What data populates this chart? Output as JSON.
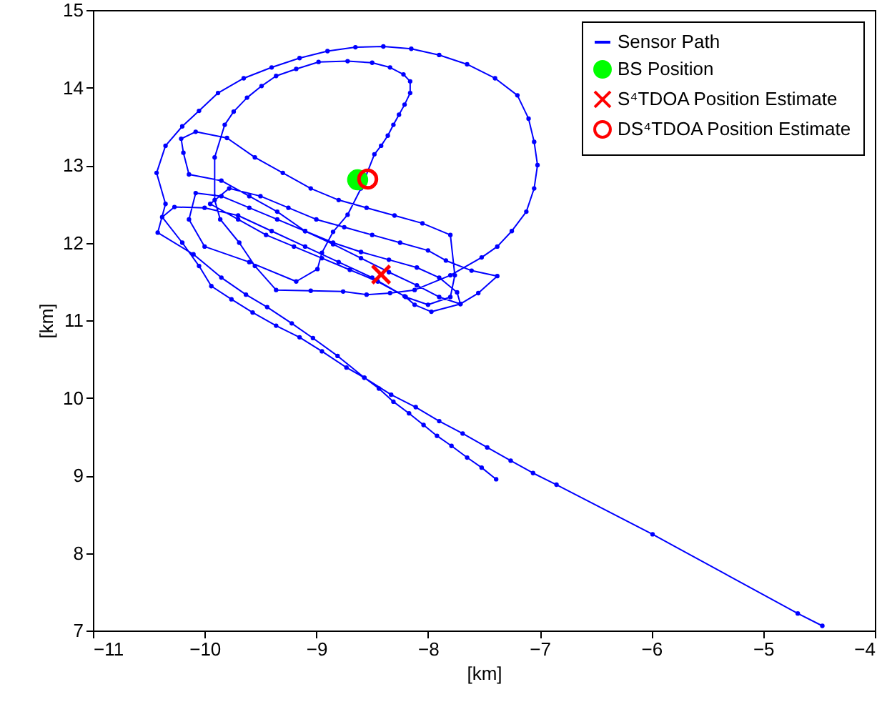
{
  "chart_data": {
    "type": "line",
    "xlabel": "[km]",
    "ylabel": "[km]",
    "xlim": [
      -11,
      -4
    ],
    "ylim": [
      7,
      15
    ],
    "xticks": [
      -11,
      -10,
      -9,
      -8,
      -7,
      -6,
      -5,
      -4
    ],
    "yticks": [
      7,
      8,
      9,
      10,
      11,
      12,
      13,
      14,
      15
    ],
    "legend": "top right",
    "series": [
      {
        "name": "Sensor Path",
        "type": "line",
        "marker": "circle",
        "color": "#0000ff",
        "x": [
          -4.47,
          -4.69,
          -5.99,
          -6.85,
          -7.06,
          -7.26,
          -7.47,
          -7.69,
          -7.9,
          -8.11,
          -8.33,
          -8.57,
          -8.81,
          -9.03,
          -9.22,
          -9.44,
          -9.63,
          -9.85,
          -10.1,
          -10.42,
          -10.35,
          -10.43,
          -10.35,
          -10.2,
          -10.05,
          -9.88,
          -9.65,
          -9.4,
          -9.15,
          -8.9,
          -8.65,
          -8.4,
          -8.15,
          -7.9,
          -7.65,
          -7.4,
          -7.2,
          -7.1,
          -7.05,
          -7.02,
          -7.05,
          -7.12,
          -7.25,
          -7.38,
          -7.52,
          -7.8,
          -8.12,
          -8.34,
          -8.55,
          -8.76,
          -9.05,
          -9.36,
          -9.55,
          -9.69,
          -9.86,
          -9.91,
          -9.91,
          -9.82,
          -9.74,
          -9.62,
          -9.49,
          -9.36,
          -9.18,
          -8.98,
          -8.72,
          -8.5,
          -8.34,
          -8.22,
          -8.16,
          -8.16,
          -8.21,
          -8.26,
          -8.31,
          -8.36,
          -8.42,
          -8.48,
          -8.6,
          -8.72,
          -8.85,
          -8.95,
          -8.99,
          -9.18,
          -9.6,
          -10.0,
          -10.14,
          -10.08,
          -9.85,
          -9.6,
          -9.35,
          -9.1,
          -8.85,
          -8.6,
          -8.35,
          -8.1,
          -7.9,
          -7.74,
          -7.71,
          -7.97,
          -8.12,
          -8.21,
          -8.45,
          -8.7,
          -8.95,
          -9.2,
          -9.45,
          -9.7,
          -9.95,
          -9.78,
          -9.5,
          -9.25,
          -9.0,
          -8.75,
          -8.5,
          -8.25,
          -8.0,
          -7.84,
          -7.61,
          -7.38,
          -7.55,
          -7.71,
          -7.9,
          -8.1,
          -8.35,
          -8.6,
          -8.85,
          -9.1,
          -9.35,
          -9.6,
          -9.85,
          -10.14,
          -10.19,
          -10.21,
          -10.08,
          -9.8,
          -9.55,
          -9.3,
          -9.05,
          -8.8,
          -8.55,
          -8.3,
          -8.05,
          -7.8,
          -7.76,
          -7.8,
          -8.0,
          -8.2,
          -8.5,
          -8.8,
          -9.1,
          -9.4,
          -9.7,
          -10.0,
          -10.27,
          -10.38,
          -10.2,
          -10.05,
          -9.94,
          -9.76,
          -9.57,
          -9.36,
          -9.15,
          -8.95,
          -8.73,
          -8.57,
          -8.44,
          -8.31,
          -8.17,
          -8.04,
          -7.92,
          -7.79,
          -7.65,
          -7.52,
          -7.39
        ],
        "values": [
          7.06,
          7.22,
          8.24,
          8.88,
          9.03,
          9.19,
          9.36,
          9.54,
          9.7,
          9.88,
          10.04,
          10.26,
          10.54,
          10.77,
          10.96,
          11.17,
          11.33,
          11.55,
          11.85,
          12.13,
          12.5,
          12.9,
          13.25,
          13.5,
          13.7,
          13.93,
          14.12,
          14.26,
          14.38,
          14.47,
          14.52,
          14.53,
          14.5,
          14.42,
          14.3,
          14.12,
          13.9,
          13.6,
          13.3,
          13.0,
          12.7,
          12.4,
          12.15,
          11.95,
          11.81,
          11.58,
          11.39,
          11.35,
          11.33,
          11.37,
          11.38,
          11.39,
          11.7,
          12.0,
          12.3,
          12.55,
          13.1,
          13.52,
          13.69,
          13.87,
          14.02,
          14.15,
          14.24,
          14.33,
          14.34,
          14.32,
          14.26,
          14.17,
          14.08,
          13.93,
          13.78,
          13.65,
          13.52,
          13.38,
          13.25,
          13.14,
          12.7,
          12.36,
          12.14,
          11.87,
          11.66,
          11.5,
          11.75,
          11.95,
          12.3,
          12.64,
          12.6,
          12.45,
          12.3,
          12.15,
          12.0,
          11.88,
          11.78,
          11.68,
          11.55,
          11.36,
          11.21,
          11.11,
          11.2,
          11.31,
          11.5,
          11.65,
          11.8,
          11.95,
          12.1,
          12.3,
          12.5,
          12.7,
          12.6,
          12.45,
          12.3,
          12.2,
          12.1,
          12.0,
          11.9,
          11.77,
          11.64,
          11.57,
          11.35,
          11.21,
          11.3,
          11.45,
          11.62,
          11.8,
          11.98,
          12.15,
          12.4,
          12.6,
          12.8,
          12.88,
          13.16,
          13.34,
          13.43,
          13.35,
          13.1,
          12.9,
          12.7,
          12.55,
          12.45,
          12.35,
          12.25,
          12.1,
          11.58,
          11.3,
          11.2,
          11.3,
          11.55,
          11.75,
          11.95,
          12.15,
          12.35,
          12.45,
          12.46,
          12.33,
          12.0,
          11.7,
          11.44,
          11.27,
          11.1,
          10.93,
          10.78,
          10.6,
          10.39,
          10.26,
          10.12,
          9.95,
          9.8,
          9.65,
          9.51,
          9.38,
          9.23,
          9.1,
          8.95
        ]
      },
      {
        "name": "BS Position",
        "type": "scatter",
        "marker": "circle",
        "color": "#00ff00",
        "x": [
          -8.63
        ],
        "values": [
          12.81
        ]
      },
      {
        "name": "S⁴TDOA Position Estimate",
        "type": "scatter",
        "marker": "cross",
        "color": "#ff0000",
        "x": [
          -8.42
        ],
        "values": [
          11.59
        ]
      },
      {
        "name": "DS⁴TDOA Position Estimate",
        "type": "scatter",
        "marker": "circle",
        "color": "#ff0000",
        "x": [
          -8.54
        ],
        "values": [
          12.82
        ]
      }
    ]
  }
}
